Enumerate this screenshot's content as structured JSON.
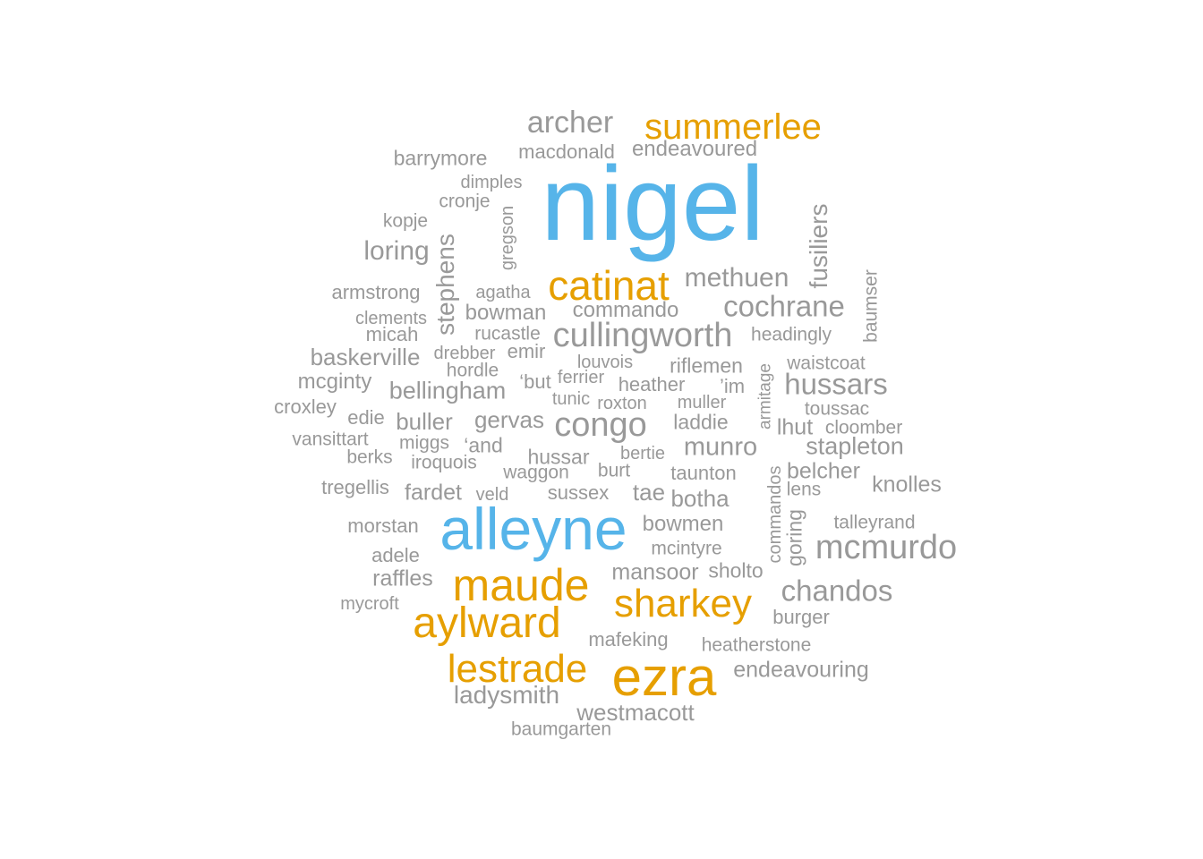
{
  "colors": {
    "top": "#56b4e9",
    "high": "#e69f00",
    "base": "#999999"
  },
  "words": {
    "nigel": "nigel",
    "alleyne": "alleyne",
    "ezra": "ezra",
    "maude": "maude",
    "aylward": "aylward",
    "summerlee": "summerlee",
    "catinat": "catinat",
    "sharkey": "sharkey",
    "lestrade": "lestrade",
    "cullingworth": "cullingworth",
    "congo": "congo",
    "mcmurdo": "mcmurdo",
    "archer": "archer",
    "cochrane": "cochrane",
    "hussars": "hussars",
    "chandos": "chandos",
    "methuen": "methuen",
    "stephens": "stephens",
    "fusiliers": "fusiliers",
    "loring": "loring",
    "ladysmith": "ladysmith",
    "westmacott": "westmacott",
    "bellingham": "bellingham",
    "munro": "munro",
    "stapleton": "stapleton",
    "mansoor": "mansoor",
    "baskerville": "baskerville",
    "endeavouring": "endeavouring",
    "endeavoured": "endeavoured",
    "barrymore": "barrymore",
    "macdonald": "macdonald",
    "commando": "commando",
    "bowman": "bowman",
    "buller": "buller",
    "gervas": "gervas",
    "mcginty": "mcginty",
    "raffles": "raffles",
    "knolles": "knolles",
    "bowmen": "bowmen",
    "botha": "botha",
    "fardet": "fardet",
    "sholto": "sholto",
    "burger": "burger",
    "belcher": "belcher",
    "lhut": "lhut",
    "riflemen": "riflemen",
    "armstrong": "armstrong",
    "heatherstone": "heatherstone",
    "mafeking": "mafeking",
    "baumgarten": "baumgarten",
    "sussex": "sussex",
    "tae": "tae",
    "heather": "heather",
    "laddie": "laddie",
    "hussar": "hussar",
    "waggon": "waggon",
    "taunton": "taunton",
    "tregellis": "tregellis",
    "morstan": "morstan",
    "adele": "adele",
    "mycroft": "mycroft",
    "mcintyre": "mcintyre",
    "talleyrand": "talleyrand",
    "commandos": "commandos",
    "goring": "goring",
    "lens": "lens",
    "cloomber": "cloomber",
    "toussac": "toussac",
    "waistcoat": "waistcoat",
    "headingly": "headingly",
    "baumser": "baumser",
    "armitage": "armitage",
    "muller": "muller",
    "im": "’im",
    "roxton": "roxton",
    "tunic": "tunic",
    "ferrier": "ferrier",
    "but": "‘but",
    "louvois": "louvois",
    "emir": "emir",
    "rucastle": "rucastle",
    "agatha": "agatha",
    "gregson": "gregson",
    "cronje": "cronje",
    "dimples": "dimples",
    "kopje": "kopje",
    "clements": "clements",
    "micah": "micah",
    "drebber": "drebber",
    "hordle": "hordle",
    "croxley": "croxley",
    "edie": "edie",
    "vansittart": "vansittart",
    "miggs": "miggs",
    "and": "‘and",
    "berks": "berks",
    "iroquois": "iroquois",
    "veld": "veld",
    "bertie": "bertie",
    "burt": "burt"
  }
}
